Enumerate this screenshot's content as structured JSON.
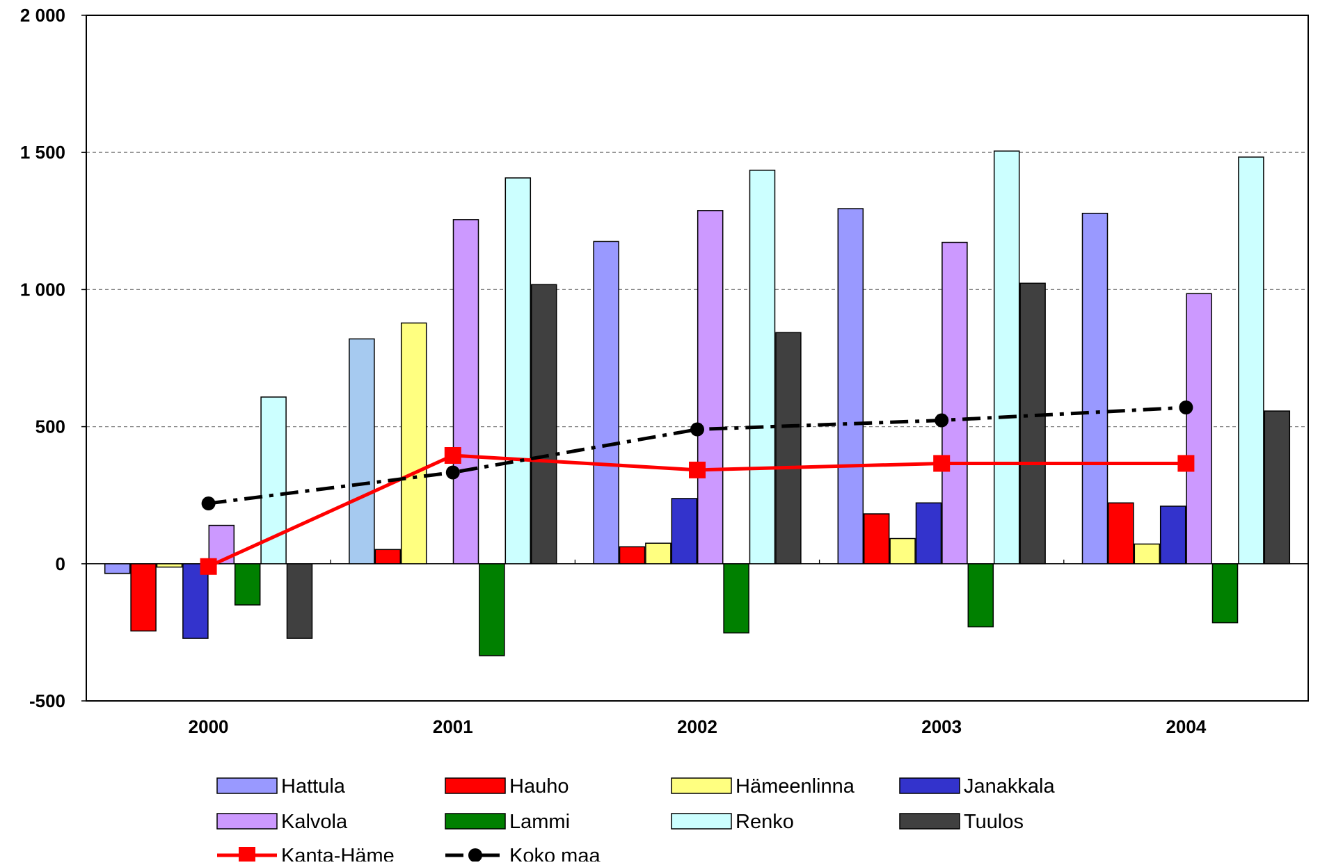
{
  "chart_data": {
    "type": "bar",
    "categories": [
      "2000",
      "2001",
      "2002",
      "2003",
      "2004"
    ],
    "ylim": [
      -500,
      2000
    ],
    "yticks": [
      2000,
      1500,
      1000,
      500,
      0,
      -500
    ],
    "ytick_labels": [
      "2 000",
      "1 500",
      "1 000",
      "500",
      "0",
      "-500"
    ],
    "grid": true,
    "legend_position": "bottom",
    "series": [
      {
        "name": "Hattula",
        "type": "bar",
        "color": "#9999ff",
        "values": [
          -35,
          820,
          1175,
          1295,
          1278
        ],
        "alt_colors": {
          "1": "#a6caf0"
        }
      },
      {
        "name": "Hauho",
        "type": "bar",
        "color": "#ff0000",
        "values": [
          -245,
          52,
          62,
          182,
          222
        ]
      },
      {
        "name": "Hämeenlinna",
        "type": "bar",
        "color": "#ffff80",
        "values": [
          -12,
          878,
          75,
          92,
          72
        ]
      },
      {
        "name": "Janakkala",
        "type": "bar",
        "color": "#3333cc",
        "values": [
          -272,
          null,
          238,
          222,
          210
        ]
      },
      {
        "name": "Kalvola",
        "type": "bar",
        "color": "#cc99ff",
        "values": [
          140,
          1255,
          1288,
          1172,
          985
        ]
      },
      {
        "name": "Lammi",
        "type": "bar",
        "color": "#008000",
        "values": [
          -150,
          -335,
          -252,
          -230,
          -215
        ]
      },
      {
        "name": "Renko",
        "type": "bar",
        "color": "#ccffff",
        "values": [
          608,
          1407,
          1435,
          1505,
          1483
        ]
      },
      {
        "name": "Tuulos",
        "type": "bar",
        "color": "#404040",
        "values": [
          -272,
          1018,
          843,
          1023,
          557
        ]
      },
      {
        "name": "Kanta-Häme",
        "type": "line",
        "color": "#ff0000",
        "marker": "square",
        "line_style": "solid",
        "values": [
          -10,
          395,
          342,
          366,
          366
        ]
      },
      {
        "name": "Koko maa",
        "type": "line",
        "color": "#000000",
        "marker": "circle",
        "line_style": "dash-dot",
        "values": [
          220,
          333,
          490,
          523,
          570
        ]
      }
    ]
  }
}
